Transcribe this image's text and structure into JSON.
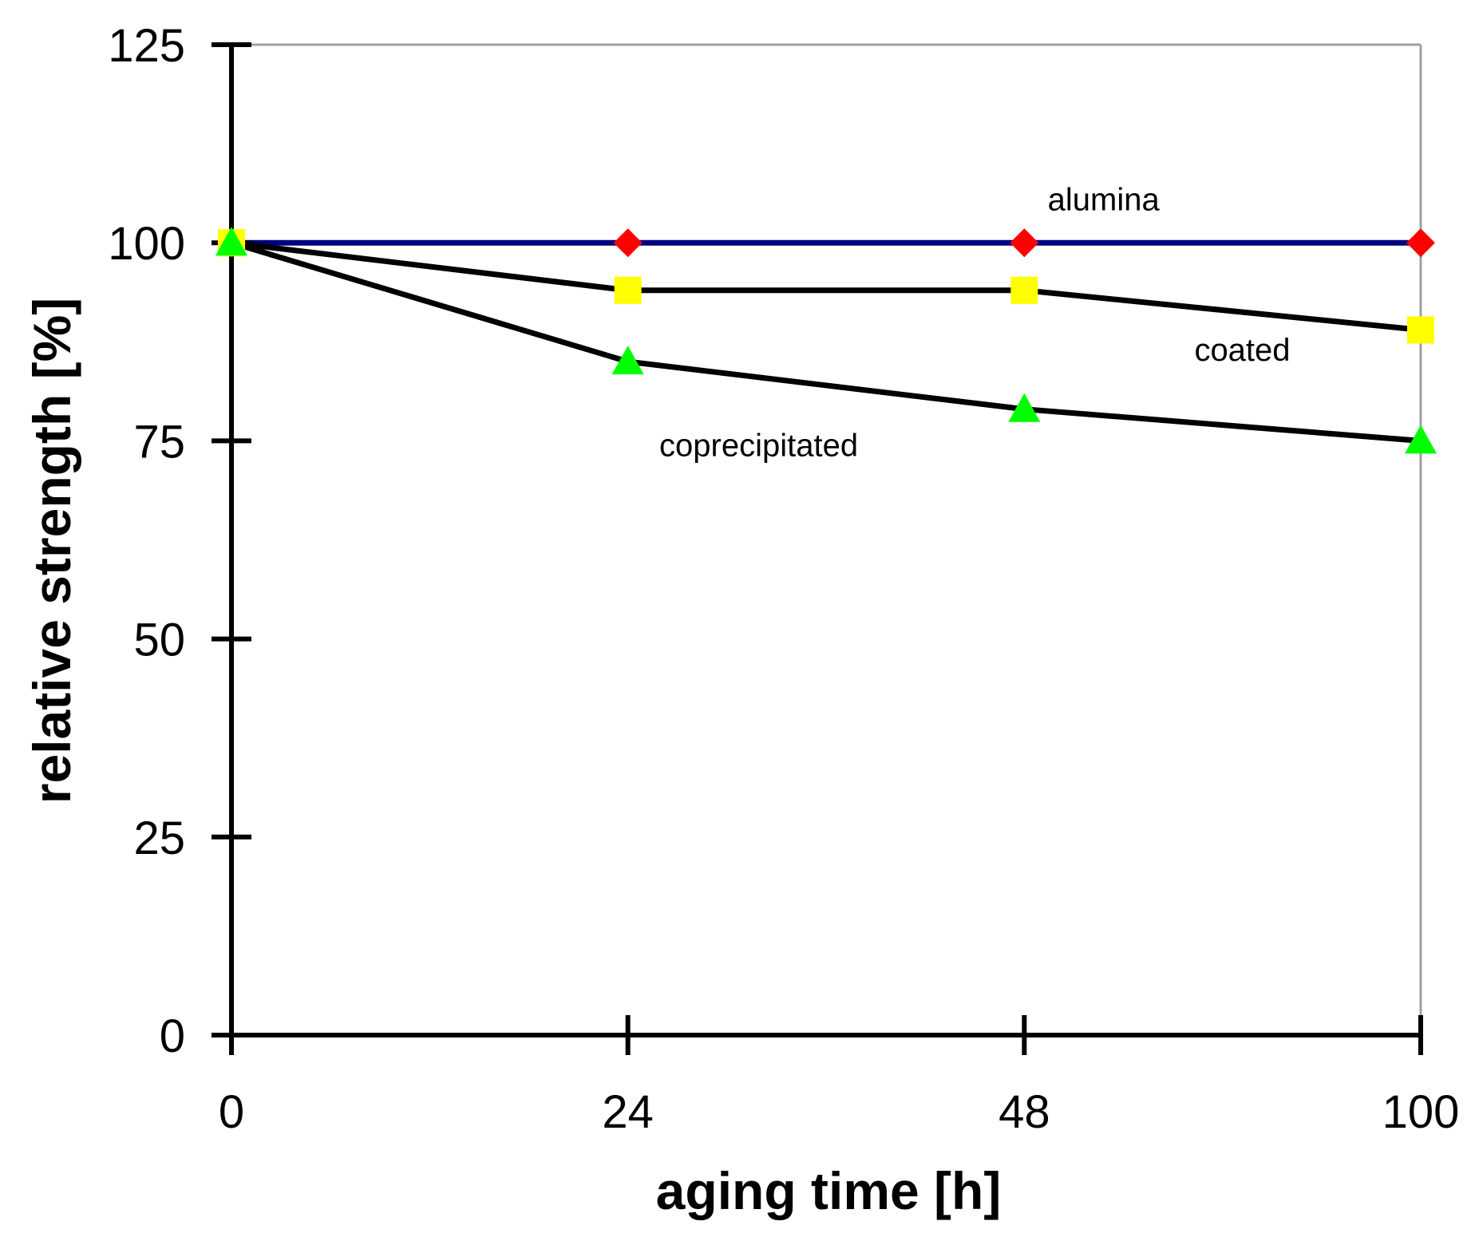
{
  "chart_data": {
    "type": "line",
    "title": "",
    "xlabel": "aging time [h]",
    "ylabel": "relative strength [%]",
    "categories": [
      "0",
      "24",
      "48",
      "100"
    ],
    "ylim": [
      0,
      125
    ],
    "yticks": [
      0,
      25,
      50,
      75,
      100,
      125
    ],
    "grid": false,
    "series": [
      {
        "name": "alumina",
        "values": [
          100,
          100,
          100,
          100
        ],
        "line_color": "#000080",
        "marker": "diamond",
        "marker_color": "#ff0000"
      },
      {
        "name": "coated",
        "values": [
          100,
          94,
          94,
          89
        ],
        "line_color": "#000000",
        "marker": "square",
        "marker_color": "#ffff00"
      },
      {
        "name": "coprecipitated",
        "values": [
          100,
          85,
          79,
          75
        ],
        "line_color": "#000000",
        "marker": "triangle",
        "marker_color": "#00ff00"
      }
    ]
  }
}
